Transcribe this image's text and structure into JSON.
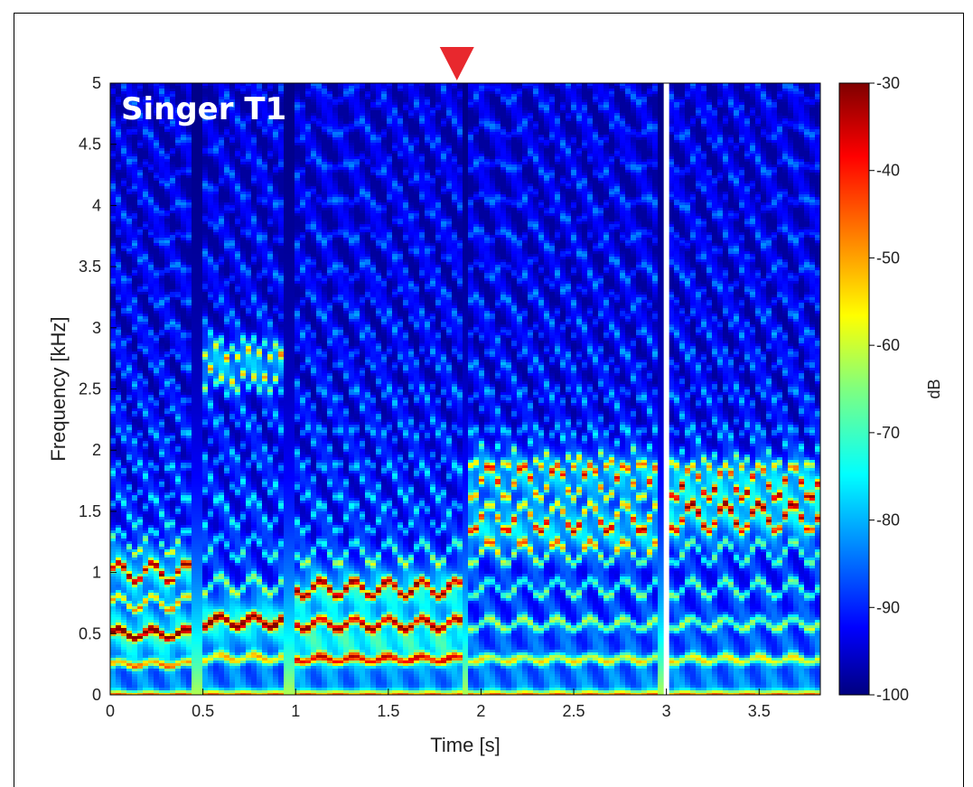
{
  "chart_data": {
    "type": "heatmap",
    "title": "",
    "panel_label": "Singer T1",
    "xlabel": "Time [s]",
    "ylabel": "Frequency [kHz]",
    "xlim": [
      0,
      3.83
    ],
    "ylim": [
      0,
      5
    ],
    "x_ticks": [
      "0",
      "0.5",
      "1",
      "1.5",
      "2",
      "2.5",
      "3",
      "3.5"
    ],
    "y_ticks": [
      "0",
      "0.5",
      "1",
      "1.5",
      "2",
      "2.5",
      "3",
      "3.5",
      "4",
      "4.5",
      "5"
    ],
    "colorbar": {
      "label": "dB",
      "range": [
        -100,
        -30
      ],
      "ticks": [
        "-30",
        "-40",
        "-50",
        "-60",
        "-70",
        "-80",
        "-90",
        "-100"
      ],
      "colormap": "jet"
    },
    "gap_at_time_s": 3.0,
    "marker": {
      "shape": "down-triangle",
      "time_s": 1.87,
      "color": "#e8282e"
    },
    "segments": [
      {
        "t_start": 0.0,
        "t_end": 0.45,
        "f0_khz": 0.25,
        "formants_khz": [
          0.5,
          1.0
        ]
      },
      {
        "t_start": 0.5,
        "t_end": 0.95,
        "f0_khz": 0.3,
        "formants_khz": [
          0.6,
          2.7
        ]
      },
      {
        "t_start": 1.0,
        "t_end": 1.9,
        "f0_khz": 0.29,
        "formants_khz": [
          0.45,
          0.85
        ]
      },
      {
        "t_start": 1.92,
        "t_end": 2.95,
        "f0_khz": 0.29,
        "formants_khz": [
          1.35,
          1.8
        ]
      },
      {
        "t_start": 3.02,
        "t_end": 3.83,
        "f0_khz": 0.29,
        "formants_khz": [
          1.45,
          1.75
        ]
      }
    ]
  }
}
